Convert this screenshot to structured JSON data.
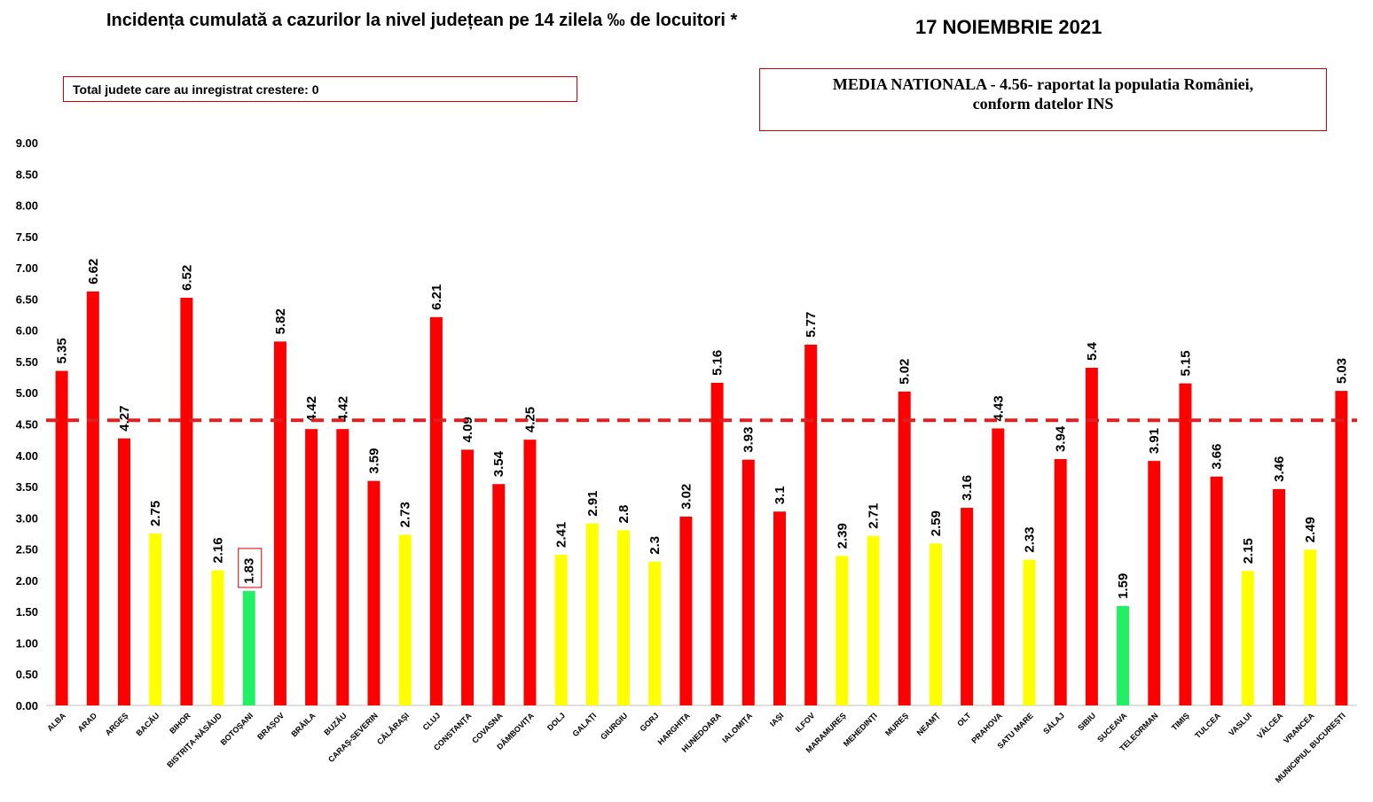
{
  "chart_data": {
    "type": "bar",
    "title": "Incidența cumulată a cazurilor la nivel județean pe 14 zilela ‰ de locuitori *",
    "date": "17 NOIEMBRIE 2021",
    "annotation_growth": "Total judete care au inregistrat crestere: 0",
    "national_average_text": {
      "line1": "MEDIA NATIONALA   - 4.56-  raportat la populatia României,",
      "line2": "conform datelor INS"
    },
    "national_average": 4.56,
    "ylim": [
      0,
      9
    ],
    "ytick_step": 0.5,
    "ytick_labels": [
      "0.00",
      "0.50",
      "1.00",
      "1.50",
      "2.00",
      "2.50",
      "3.00",
      "3.50",
      "4.00",
      "4.50",
      "5.00",
      "5.50",
      "6.00",
      "6.50",
      "7.00",
      "7.50",
      "8.00",
      "8.50",
      "9.00"
    ],
    "grid": false,
    "legend": "none",
    "colors": {
      "high": "#ff0000",
      "medium": "#ffff00",
      "low": "#22ee66",
      "average_line": "#e02020"
    },
    "categories": [
      "ALBA",
      "ARAD",
      "ARGEȘ",
      "BACĂU",
      "BIHOR",
      "BISTRIȚA-NĂSĂUD",
      "BOTOȘANI",
      "BRAȘOV",
      "BRĂILA",
      "BUZĂU",
      "CARAȘ-SEVERIN",
      "CĂLĂRAȘI",
      "CLUJ",
      "CONSTANȚA",
      "COVASNA",
      "DÂMBOVIȚA",
      "DOLJ",
      "GALAȚI",
      "GIURGIU",
      "GORJ",
      "HARGHITA",
      "HUNEDOARA",
      "IALOMIȚA",
      "IAȘI",
      "ILFOV",
      "MARAMUREȘ",
      "MEHEDINȚI",
      "MUREȘ",
      "NEAMȚ",
      "OLT",
      "PRAHOVA",
      "SATU MARE",
      "SĂLAJ",
      "SIBIU",
      "SUCEAVA",
      "TELEORMAN",
      "TIMIȘ",
      "TULCEA",
      "VASLUI",
      "VÂLCEA",
      "VRANCEA",
      "MUNICIPIUL BUCUREȘTI"
    ],
    "values": [
      5.35,
      6.62,
      4.27,
      2.75,
      6.52,
      2.16,
      1.83,
      5.82,
      4.42,
      4.42,
      3.59,
      2.73,
      6.21,
      4.09,
      3.54,
      4.25,
      2.41,
      2.91,
      2.8,
      2.3,
      3.02,
      5.16,
      3.93,
      3.1,
      5.77,
      2.39,
      2.71,
      5.02,
      2.59,
      3.16,
      4.43,
      2.33,
      3.94,
      5.4,
      1.59,
      3.91,
      5.15,
      3.66,
      2.15,
      3.46,
      2.49,
      5.03
    ],
    "value_labels": [
      "5.35",
      "6.62",
      "4.27",
      "2.75",
      "6.52",
      "2.16",
      "1.83",
      "5.82",
      "4.42",
      "4.42",
      "3.59",
      "2.73",
      "6.21",
      "4.09",
      "3.54",
      "4.25",
      "2.41",
      "2.91",
      "2.8",
      "2.3",
      "3.02",
      "5.16",
      "3.93",
      "3.1",
      "5.77",
      "2.39",
      "2.71",
      "5.02",
      "2.59",
      "3.16",
      "4.43",
      "2.33",
      "3.94",
      "5.4",
      "1.59",
      "3.91",
      "5.15",
      "3.66",
      "2.15",
      "3.46",
      "2.49",
      "5.03"
    ],
    "bar_color_levels": [
      "high",
      "high",
      "high",
      "medium",
      "high",
      "medium",
      "low",
      "high",
      "high",
      "high",
      "high",
      "medium",
      "high",
      "high",
      "high",
      "high",
      "medium",
      "medium",
      "medium",
      "medium",
      "high",
      "high",
      "high",
      "high",
      "high",
      "medium",
      "medium",
      "high",
      "medium",
      "high",
      "high",
      "medium",
      "high",
      "high",
      "low",
      "high",
      "high",
      "high",
      "medium",
      "high",
      "medium",
      "high"
    ],
    "highlighted_label": "BOTOȘANI"
  }
}
